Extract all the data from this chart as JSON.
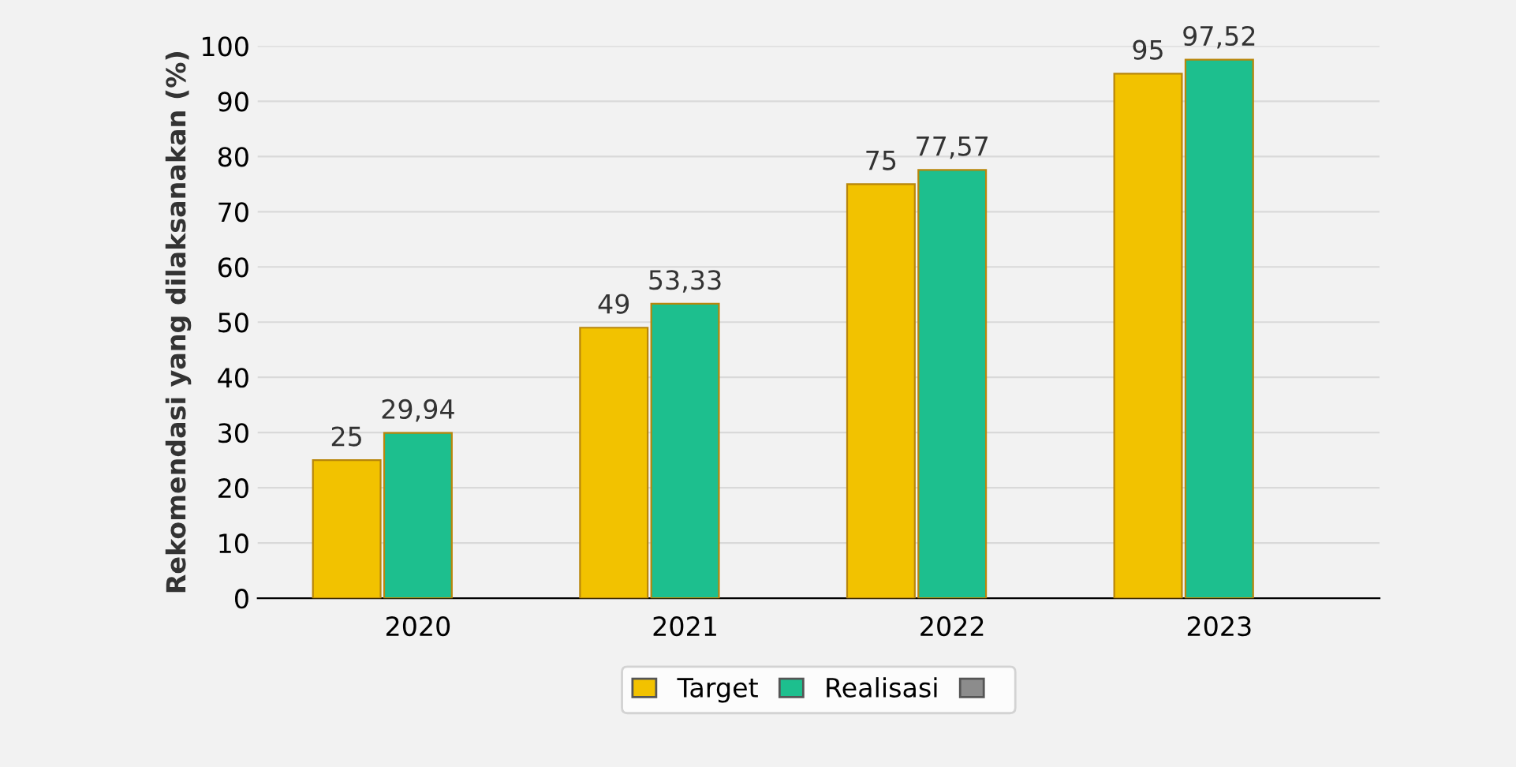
{
  "chart_data": {
    "type": "bar",
    "ylabel": "Rekomendasi yang dilaksanakan (%)",
    "categories": [
      "2020",
      "2021",
      "2022",
      "2023"
    ],
    "series": [
      {
        "name": "Target",
        "color": "#f2c200",
        "values": [
          25,
          49,
          75,
          95
        ],
        "value_labels": [
          "25",
          "49",
          "75",
          "95"
        ]
      },
      {
        "name": "Realisasi",
        "color": "#1dbf8e",
        "values": [
          29.94,
          53.33,
          77.57,
          97.52
        ],
        "value_labels": [
          "29,94",
          "53,33",
          "77,57",
          "97,52"
        ]
      },
      {
        "color": "#8c8c8c",
        "values": [
          0,
          0,
          0,
          0
        ]
      }
    ],
    "ylim": [
      0,
      100
    ],
    "yticks": [
      0,
      10,
      20,
      30,
      40,
      50,
      60,
      70,
      80,
      90,
      100
    ],
    "grid": "y",
    "legend": "bottom"
  }
}
